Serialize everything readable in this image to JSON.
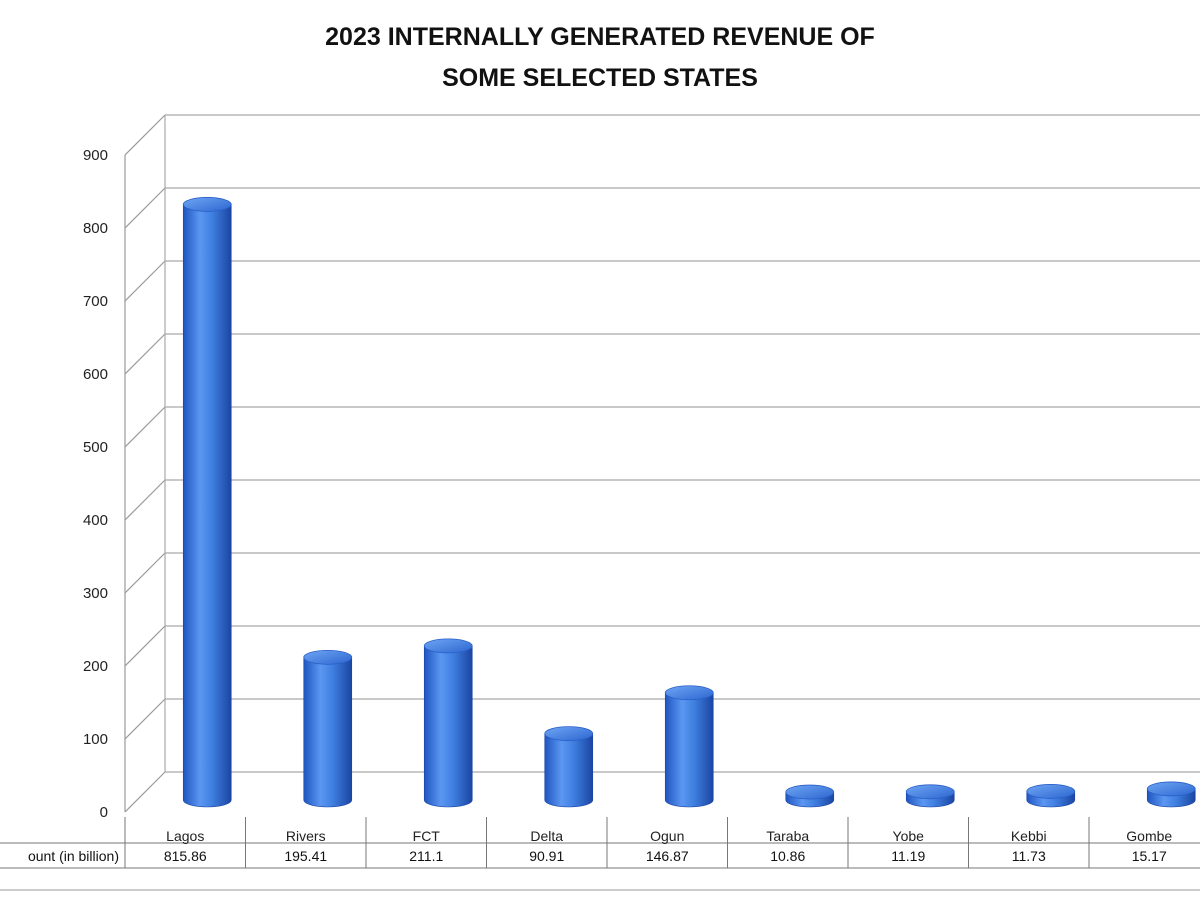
{
  "chart_data": {
    "type": "bar",
    "title": [
      "2023 INTERNALLY GENERATED REVENUE OF",
      "SOME SELECTED STATES"
    ],
    "categories": [
      "Lagos",
      "Rivers",
      "FCT",
      "Delta",
      "Ogun",
      "Taraba",
      "Yobe",
      "Kebbi",
      "Gombe"
    ],
    "series": [
      {
        "name": "ount (in billion)",
        "values": [
          815.86,
          195.41,
          211.1,
          90.91,
          146.87,
          10.86,
          11.19,
          11.73,
          15.17
        ]
      }
    ],
    "value_labels": [
      "815.86",
      "195.41",
      "211.1",
      "90.91",
      "146.87",
      "10.86",
      "11.19",
      "11.73",
      "15.17"
    ],
    "yticks": [
      0,
      100,
      200,
      300,
      400,
      500,
      600,
      700,
      800,
      900
    ],
    "ylim": [
      0,
      900
    ],
    "grid": true,
    "bar_color": "#3f7fe0",
    "bar_shadow": "#1d4fb0",
    "style": "3d-cylinder",
    "data_table": true
  }
}
